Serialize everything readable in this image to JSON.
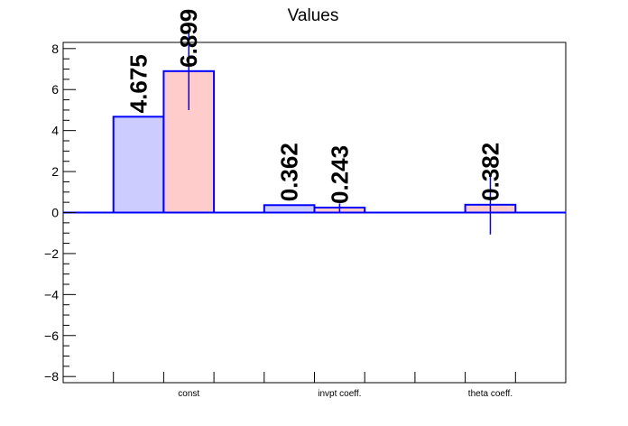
{
  "chart_data": {
    "type": "bar",
    "title": "Values",
    "categories": [
      "const",
      "invpt coeff.",
      "theta coeff."
    ],
    "ylim": [
      -8.3,
      8.3
    ],
    "yticks": [
      -8,
      -6,
      -4,
      -2,
      0,
      2,
      4,
      6,
      8
    ],
    "ytick_labels": [
      "−8",
      "−6",
      "−4",
      "−2",
      "0",
      "2",
      "4",
      "6",
      "8"
    ],
    "grid": false,
    "legend": "none",
    "series": [
      {
        "color": "#0000ff",
        "fill": "#ccccff",
        "values": [
          4.675,
          0.362,
          null
        ],
        "errors": [
          null,
          null,
          null
        ],
        "labels": [
          "4.675",
          "0.362",
          ""
        ]
      },
      {
        "color": "#0000ff",
        "fill": "#ffcccc",
        "values": [
          6.899,
          0.243,
          0.382
        ],
        "errors": [
          1.9,
          0.2,
          1.45
        ],
        "labels": [
          "6.899",
          "0.243",
          "0.382"
        ]
      }
    ]
  }
}
